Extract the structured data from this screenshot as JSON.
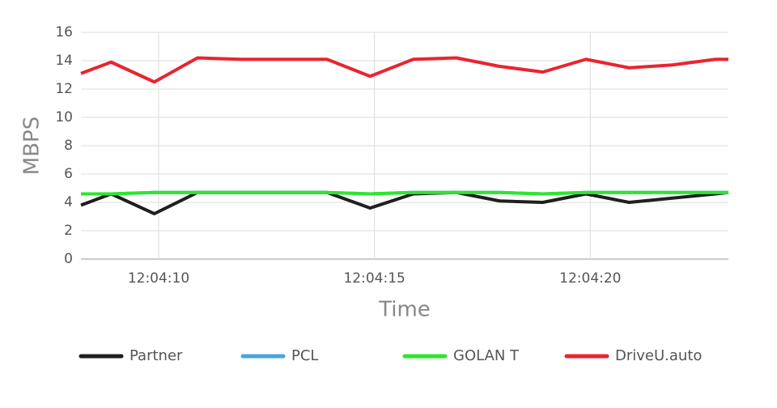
{
  "chart_data": {
    "type": "line",
    "x_label": "Time",
    "y_label": "MBPS",
    "x": [
      8.2,
      8.9,
      9.9,
      10.9,
      11.9,
      12.9,
      13.9,
      14.9,
      15.9,
      16.9,
      17.9,
      18.9,
      19.9,
      20.9,
      21.9,
      22.9,
      23.2
    ],
    "series": [
      {
        "name": "Partner",
        "color": "#1f1f1f",
        "values": [
          3.8,
          4.6,
          3.2,
          4.7,
          4.7,
          4.7,
          4.7,
          3.6,
          4.6,
          4.7,
          4.1,
          4.0,
          4.6,
          4.0,
          4.3,
          4.6,
          4.7
        ]
      },
      {
        "name": "PCL",
        "color": "#4aa3df",
        "values": [
          4.6,
          4.6,
          4.7,
          4.7,
          4.7,
          4.7,
          4.7,
          4.6,
          4.7,
          4.7,
          4.7,
          4.6,
          4.7,
          4.7,
          4.7,
          4.7,
          4.7
        ]
      },
      {
        "name": "GOLAN T",
        "color": "#2ee62e",
        "values": [
          4.6,
          4.6,
          4.7,
          4.7,
          4.7,
          4.7,
          4.7,
          4.6,
          4.7,
          4.7,
          4.7,
          4.6,
          4.7,
          4.7,
          4.7,
          4.7,
          4.7
        ]
      },
      {
        "name": "DriveU.auto",
        "color": "#e8252f",
        "values": [
          13.1,
          13.9,
          12.5,
          14.2,
          14.1,
          14.1,
          14.1,
          12.9,
          14.1,
          14.2,
          13.6,
          13.2,
          14.1,
          13.5,
          13.7,
          14.1,
          14.1
        ]
      }
    ],
    "xlim": [
      8.2,
      23.2
    ],
    "xticks": [
      {
        "value": 10,
        "label": "12:04:10"
      },
      {
        "value": 15,
        "label": "12:04:15"
      },
      {
        "value": 20,
        "label": "12:04:20"
      }
    ],
    "ylim": [
      0,
      16
    ],
    "yticks": [
      0,
      2,
      4,
      6,
      8,
      10,
      12,
      14,
      16
    ],
    "grid": true,
    "legend": "bottom"
  }
}
